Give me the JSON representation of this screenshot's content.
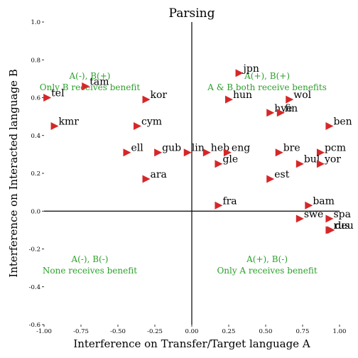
{
  "chart_data": {
    "type": "scatter",
    "title": "Parsing",
    "xlabel": "Interference on Transfer/Target language A",
    "ylabel": "Interference on Interacted language B",
    "xlim": [
      -1.0,
      1.0
    ],
    "ylim": [
      -0.6,
      1.0
    ],
    "xticks": [
      "-1.00",
      "-0.75",
      "-0.50",
      "-0.25",
      "0.00",
      "0.25",
      "0.50",
      "0.75",
      "1.00"
    ],
    "xtick_values": [
      -1.0,
      -0.75,
      -0.5,
      -0.25,
      0.0,
      0.25,
      0.5,
      0.75,
      1.0
    ],
    "yticks": [
      "-0.6",
      "-0.4",
      "-0.2",
      "0.0",
      "0.2",
      "0.4",
      "0.6",
      "0.8",
      "1.0"
    ],
    "ytick_values": [
      -0.6,
      -0.4,
      -0.2,
      0.0,
      0.2,
      0.4,
      0.6,
      0.8,
      1.0
    ],
    "grid": false,
    "marker": "right-triangle",
    "marker_color": "#d62728",
    "annotation_color": "#2ca02c",
    "quadrant_labels": [
      {
        "line1": "A(-), B(+)",
        "line2": "Only B receives benefit",
        "x": -0.69,
        "y": 0.67
      },
      {
        "line1": "A(+), B(+)",
        "line2": "A & B both receive benefits",
        "x": 0.51,
        "y": 0.67
      },
      {
        "line1": "A(-), B(-)",
        "line2": "None receives benefit",
        "x": -0.69,
        "y": -0.3
      },
      {
        "line1": "A(+), B(-)",
        "line2": "Only A receives benefit",
        "x": 0.51,
        "y": -0.3
      }
    ],
    "points": [
      {
        "label": "jpn",
        "x": 0.32,
        "y": 0.73
      },
      {
        "label": "tam",
        "x": -0.72,
        "y": 0.66
      },
      {
        "label": "tel",
        "x": -0.98,
        "y": 0.6
      },
      {
        "label": "kor",
        "x": -0.31,
        "y": 0.59
      },
      {
        "label": "hun",
        "x": 0.25,
        "y": 0.59
      },
      {
        "label": "wol",
        "x": 0.66,
        "y": 0.59
      },
      {
        "label": "hye",
        "x": 0.53,
        "y": 0.52
      },
      {
        "label": "fin",
        "x": 0.6,
        "y": 0.52
      },
      {
        "label": "kmr",
        "x": -0.93,
        "y": 0.45
      },
      {
        "label": "cym",
        "x": -0.37,
        "y": 0.45
      },
      {
        "label": "ben",
        "x": 0.93,
        "y": 0.45
      },
      {
        "label": "ell",
        "x": -0.44,
        "y": 0.31
      },
      {
        "label": "gub",
        "x": -0.23,
        "y": 0.31
      },
      {
        "label": "lin",
        "x": -0.03,
        "y": 0.31
      },
      {
        "label": "heb",
        "x": 0.1,
        "y": 0.31
      },
      {
        "label": "eng",
        "x": 0.24,
        "y": 0.31
      },
      {
        "label": "bre",
        "x": 0.59,
        "y": 0.31
      },
      {
        "label": "pcm",
        "x": 0.87,
        "y": 0.31
      },
      {
        "label": "gle",
        "x": 0.18,
        "y": 0.25
      },
      {
        "label": "bul",
        "x": 0.73,
        "y": 0.25
      },
      {
        "label": "yor",
        "x": 0.87,
        "y": 0.25
      },
      {
        "label": "ara",
        "x": -0.31,
        "y": 0.17
      },
      {
        "label": "est",
        "x": 0.53,
        "y": 0.17
      },
      {
        "label": "fra",
        "x": 0.18,
        "y": 0.03
      },
      {
        "label": "bam",
        "x": 0.79,
        "y": 0.03
      },
      {
        "label": "swe",
        "x": 0.73,
        "y": -0.04
      },
      {
        "label": "spa",
        "x": 0.93,
        "y": -0.04
      },
      {
        "label": "rus",
        "x": 0.93,
        "y": -0.1
      },
      {
        "label": "deu",
        "x": 0.94,
        "y": -0.1
      }
    ]
  }
}
